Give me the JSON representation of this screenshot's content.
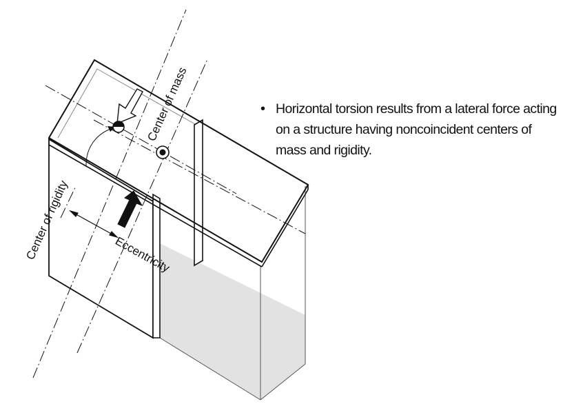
{
  "diagram": {
    "labels": {
      "center_of_mass": "Center of mass",
      "center_of_rigidity": "Center of rigidity",
      "eccentricity": "Eccentricity"
    },
    "note": {
      "bullet": "•",
      "text": "Horizontal torsion results from a lateral force acting on a structure having noncoincident centers of mass and rigidity."
    },
    "colors": {
      "line": "#111111",
      "thin_line": "#555555",
      "shadow": "#e2e2e2"
    }
  }
}
